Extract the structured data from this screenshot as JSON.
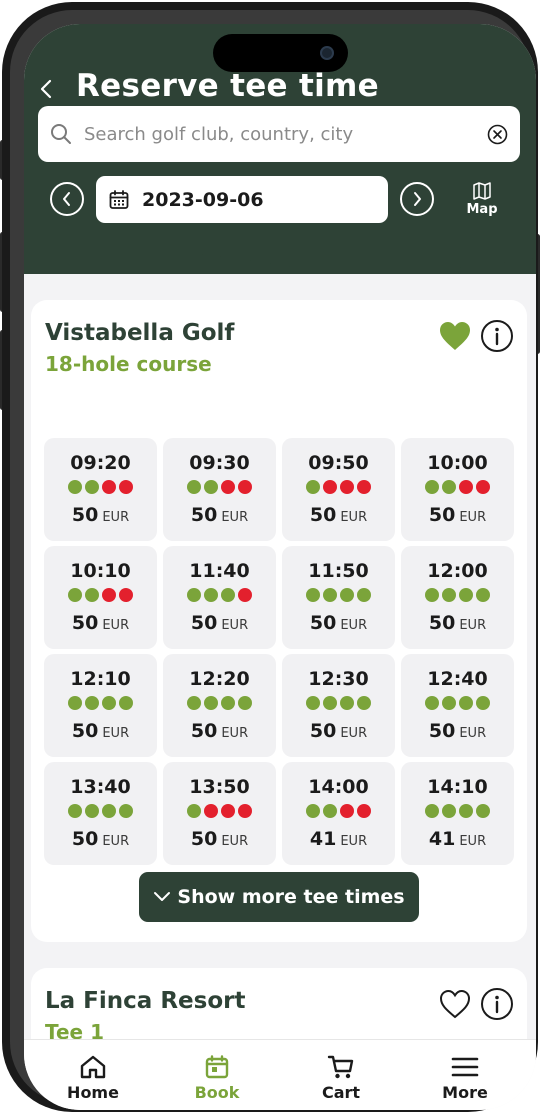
{
  "header": {
    "title": "Reserve tee time",
    "search_placeholder": "Search golf club, country, city",
    "date": "2023-09-06",
    "map_label": "Map"
  },
  "colors": {
    "brand_dark": "#2e4236",
    "accent_green": "#7ba43a",
    "occupied_red": "#e3202d"
  },
  "clubs": [
    {
      "name": "Vistabella Golf",
      "course": "18-hole course",
      "favorite": true,
      "slots": [
        {
          "time": "09:20",
          "players": [
            "g",
            "g",
            "r",
            "r"
          ],
          "price": "50",
          "currency": "EUR"
        },
        {
          "time": "09:30",
          "players": [
            "g",
            "g",
            "r",
            "r"
          ],
          "price": "50",
          "currency": "EUR"
        },
        {
          "time": "09:50",
          "players": [
            "g",
            "r",
            "r",
            "r"
          ],
          "price": "50",
          "currency": "EUR"
        },
        {
          "time": "10:00",
          "players": [
            "g",
            "g",
            "r",
            "r"
          ],
          "price": "50",
          "currency": "EUR"
        },
        {
          "time": "10:10",
          "players": [
            "g",
            "g",
            "r",
            "r"
          ],
          "price": "50",
          "currency": "EUR"
        },
        {
          "time": "11:40",
          "players": [
            "g",
            "g",
            "g",
            "r"
          ],
          "price": "50",
          "currency": "EUR"
        },
        {
          "time": "11:50",
          "players": [
            "g",
            "g",
            "g",
            "g"
          ],
          "price": "50",
          "currency": "EUR"
        },
        {
          "time": "12:00",
          "players": [
            "g",
            "g",
            "g",
            "g"
          ],
          "price": "50",
          "currency": "EUR"
        },
        {
          "time": "12:10",
          "players": [
            "g",
            "g",
            "g",
            "g"
          ],
          "price": "50",
          "currency": "EUR"
        },
        {
          "time": "12:20",
          "players": [
            "g",
            "g",
            "g",
            "g"
          ],
          "price": "50",
          "currency": "EUR"
        },
        {
          "time": "12:30",
          "players": [
            "g",
            "g",
            "g",
            "g"
          ],
          "price": "50",
          "currency": "EUR"
        },
        {
          "time": "12:40",
          "players": [
            "g",
            "g",
            "g",
            "g"
          ],
          "price": "50",
          "currency": "EUR"
        },
        {
          "time": "13:40",
          "players": [
            "g",
            "g",
            "g",
            "g"
          ],
          "price": "50",
          "currency": "EUR"
        },
        {
          "time": "13:50",
          "players": [
            "g",
            "r",
            "r",
            "r"
          ],
          "price": "50",
          "currency": "EUR"
        },
        {
          "time": "14:00",
          "players": [
            "g",
            "g",
            "r",
            "r"
          ],
          "price": "41",
          "currency": "EUR"
        },
        {
          "time": "14:10",
          "players": [
            "g",
            "g",
            "g",
            "g"
          ],
          "price": "41",
          "currency": "EUR"
        }
      ],
      "show_more_label": "Show more tee times"
    },
    {
      "name": "La Finca Resort",
      "course": "Tee 1",
      "favorite": false
    }
  ],
  "bottom_nav": [
    {
      "label": "Home",
      "icon": "home-icon",
      "active": false
    },
    {
      "label": "Book",
      "icon": "calendar-icon",
      "active": true
    },
    {
      "label": "Cart",
      "icon": "cart-icon",
      "active": false
    },
    {
      "label": "More",
      "icon": "menu-icon",
      "active": false
    }
  ]
}
